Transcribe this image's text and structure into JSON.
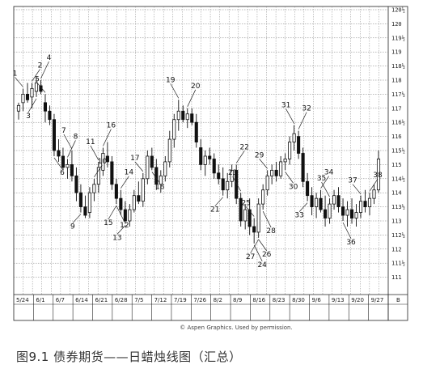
{
  "caption": "图9.1 债券期货——日蜡烛线图（汇总）",
  "credit": "© Aspen Graphics. Used by permission.",
  "chart_data": {
    "type": "candlestick",
    "title": "",
    "xlabel": "",
    "ylabel": "",
    "ylim": [
      110.5,
      120.5
    ],
    "y_ticks": [
      "111",
      "111½",
      "112",
      "112½",
      "113",
      "113½",
      "114",
      "114½",
      "115",
      "115½",
      "116",
      "116½",
      "117",
      "117½",
      "118",
      "118½",
      "119",
      "119½",
      "120",
      "120½"
    ],
    "x_ticks": [
      "5/24",
      "6/1",
      "6/7",
      "6/14",
      "6/21",
      "6/28",
      "7/5",
      "7/12",
      "7/19",
      "7/26",
      "8/2",
      "8/9",
      "8/16",
      "8/23",
      "8/30",
      "9/6",
      "9/13",
      "9/20",
      "9/27",
      "B"
    ],
    "grid": true,
    "candles": [
      {
        "o": 116.9,
        "h": 117.2,
        "l": 116.6,
        "c": 117.1
      },
      {
        "o": 117.2,
        "h": 117.7,
        "l": 116.9,
        "c": 117.5
      },
      {
        "o": 117.5,
        "h": 117.9,
        "l": 117.2,
        "c": 117.3
      },
      {
        "o": 117.4,
        "h": 117.9,
        "l": 117.0,
        "c": 117.7
      },
      {
        "o": 117.6,
        "h": 118.1,
        "l": 117.4,
        "c": 117.9
      },
      {
        "o": 117.8,
        "h": 118.0,
        "l": 117.5,
        "c": 117.6
      },
      {
        "o": 117.2,
        "h": 117.5,
        "l": 116.5,
        "c": 116.9
      },
      {
        "o": 116.9,
        "h": 117.1,
        "l": 116.4,
        "c": 116.6
      },
      {
        "o": 116.6,
        "h": 116.8,
        "l": 115.3,
        "c": 115.5
      },
      {
        "o": 115.5,
        "h": 115.9,
        "l": 115.1,
        "c": 115.3
      },
      {
        "o": 115.3,
        "h": 115.6,
        "l": 114.8,
        "c": 114.9
      },
      {
        "o": 114.9,
        "h": 115.2,
        "l": 114.5,
        "c": 115.0
      },
      {
        "o": 115.0,
        "h": 115.5,
        "l": 114.4,
        "c": 114.6
      },
      {
        "o": 114.6,
        "h": 114.9,
        "l": 113.7,
        "c": 114.0
      },
      {
        "o": 114.0,
        "h": 114.3,
        "l": 113.3,
        "c": 113.5
      },
      {
        "o": 113.5,
        "h": 113.9,
        "l": 113.1,
        "c": 113.2
      },
      {
        "o": 113.3,
        "h": 114.2,
        "l": 113.1,
        "c": 114.0
      },
      {
        "o": 114.0,
        "h": 114.5,
        "l": 113.7,
        "c": 114.3
      },
      {
        "o": 114.3,
        "h": 115.1,
        "l": 114.0,
        "c": 114.9
      },
      {
        "o": 114.8,
        "h": 115.6,
        "l": 114.6,
        "c": 115.4
      },
      {
        "o": 115.3,
        "h": 115.8,
        "l": 114.9,
        "c": 115.1
      },
      {
        "o": 115.1,
        "h": 115.3,
        "l": 114.1,
        "c": 114.3
      },
      {
        "o": 114.3,
        "h": 114.5,
        "l": 113.6,
        "c": 113.8
      },
      {
        "o": 113.8,
        "h": 114.1,
        "l": 113.2,
        "c": 113.4
      },
      {
        "o": 113.4,
        "h": 113.7,
        "l": 112.9,
        "c": 113.0
      },
      {
        "o": 113.0,
        "h": 113.6,
        "l": 112.8,
        "c": 113.4
      },
      {
        "o": 113.4,
        "h": 114.1,
        "l": 113.3,
        "c": 113.9
      },
      {
        "o": 113.9,
        "h": 114.4,
        "l": 113.6,
        "c": 113.7
      },
      {
        "o": 113.7,
        "h": 114.7,
        "l": 113.5,
        "c": 114.5
      },
      {
        "o": 114.5,
        "h": 115.5,
        "l": 114.3,
        "c": 115.3
      },
      {
        "o": 115.3,
        "h": 115.6,
        "l": 114.8,
        "c": 114.9
      },
      {
        "o": 114.9,
        "h": 115.2,
        "l": 114.1,
        "c": 114.3
      },
      {
        "o": 114.3,
        "h": 114.8,
        "l": 114.0,
        "c": 114.6
      },
      {
        "o": 114.6,
        "h": 115.3,
        "l": 114.4,
        "c": 115.1
      },
      {
        "o": 115.1,
        "h": 116.2,
        "l": 114.9,
        "c": 115.9
      },
      {
        "o": 115.9,
        "h": 116.8,
        "l": 115.6,
        "c": 116.6
      },
      {
        "o": 116.6,
        "h": 117.3,
        "l": 116.2,
        "c": 116.9
      },
      {
        "o": 116.9,
        "h": 117.1,
        "l": 116.5,
        "c": 116.6
      },
      {
        "o": 116.6,
        "h": 117.0,
        "l": 116.3,
        "c": 116.8
      },
      {
        "o": 116.8,
        "h": 117.0,
        "l": 116.4,
        "c": 116.5
      },
      {
        "o": 116.5,
        "h": 116.8,
        "l": 115.6,
        "c": 115.8
      },
      {
        "o": 115.6,
        "h": 115.9,
        "l": 114.8,
        "c": 115.0
      },
      {
        "o": 115.0,
        "h": 115.5,
        "l": 114.6,
        "c": 115.3
      },
      {
        "o": 115.3,
        "h": 115.6,
        "l": 115.0,
        "c": 115.2
      },
      {
        "o": 115.2,
        "h": 115.4,
        "l": 114.5,
        "c": 114.7
      },
      {
        "o": 114.7,
        "h": 115.0,
        "l": 114.3,
        "c": 114.5
      },
      {
        "o": 114.5,
        "h": 114.9,
        "l": 113.9,
        "c": 114.1
      },
      {
        "o": 114.1,
        "h": 114.7,
        "l": 113.8,
        "c": 114.4
      },
      {
        "o": 114.4,
        "h": 115.0,
        "l": 114.2,
        "c": 114.8
      },
      {
        "o": 114.8,
        "h": 115.0,
        "l": 113.6,
        "c": 113.8
      },
      {
        "o": 113.8,
        "h": 114.0,
        "l": 112.8,
        "c": 113.0
      },
      {
        "o": 113.0,
        "h": 113.6,
        "l": 112.7,
        "c": 113.4
      },
      {
        "o": 113.4,
        "h": 113.8,
        "l": 112.5,
        "c": 112.8
      },
      {
        "o": 112.8,
        "h": 113.1,
        "l": 112.2,
        "c": 112.6
      },
      {
        "o": 112.6,
        "h": 113.8,
        "l": 112.4,
        "c": 113.6
      },
      {
        "o": 113.6,
        "h": 114.3,
        "l": 113.4,
        "c": 114.1
      },
      {
        "o": 114.1,
        "h": 114.8,
        "l": 113.9,
        "c": 114.6
      },
      {
        "o": 114.6,
        "h": 115.0,
        "l": 114.3,
        "c": 114.8
      },
      {
        "o": 114.8,
        "h": 115.1,
        "l": 114.4,
        "c": 114.6
      },
      {
        "o": 114.6,
        "h": 115.3,
        "l": 114.5,
        "c": 115.1
      },
      {
        "o": 115.1,
        "h": 115.4,
        "l": 114.8,
        "c": 115.2
      },
      {
        "o": 115.2,
        "h": 116.0,
        "l": 115.0,
        "c": 115.8
      },
      {
        "o": 115.8,
        "h": 116.4,
        "l": 115.5,
        "c": 116.1
      },
      {
        "o": 116.0,
        "h": 116.2,
        "l": 115.2,
        "c": 115.4
      },
      {
        "o": 115.4,
        "h": 115.6,
        "l": 114.2,
        "c": 114.4
      },
      {
        "o": 114.4,
        "h": 114.7,
        "l": 113.7,
        "c": 113.9
      },
      {
        "o": 113.9,
        "h": 114.2,
        "l": 113.2,
        "c": 113.5
      },
      {
        "o": 113.5,
        "h": 114.0,
        "l": 113.1,
        "c": 113.8
      },
      {
        "o": 113.8,
        "h": 114.1,
        "l": 113.3,
        "c": 113.4
      },
      {
        "o": 113.4,
        "h": 113.9,
        "l": 112.8,
        "c": 113.1
      },
      {
        "o": 113.1,
        "h": 113.8,
        "l": 112.9,
        "c": 113.6
      },
      {
        "o": 113.6,
        "h": 114.1,
        "l": 113.4,
        "c": 113.9
      },
      {
        "o": 113.9,
        "h": 114.2,
        "l": 113.3,
        "c": 113.5
      },
      {
        "o": 113.5,
        "h": 113.8,
        "l": 113.0,
        "c": 113.2
      },
      {
        "o": 113.2,
        "h": 113.7,
        "l": 112.8,
        "c": 113.4
      },
      {
        "o": 113.4,
        "h": 113.8,
        "l": 112.9,
        "c": 113.1
      },
      {
        "o": 113.1,
        "h": 113.6,
        "l": 112.8,
        "c": 113.3
      },
      {
        "o": 113.3,
        "h": 113.9,
        "l": 113.1,
        "c": 113.7
      },
      {
        "o": 113.7,
        "h": 114.1,
        "l": 113.3,
        "c": 113.5
      },
      {
        "o": 113.5,
        "h": 114.0,
        "l": 113.2,
        "c": 113.8
      },
      {
        "o": 113.8,
        "h": 114.3,
        "l": 113.6,
        "c": 114.1
      },
      {
        "o": 114.1,
        "h": 115.5,
        "l": 114.0,
        "c": 115.2
      }
    ],
    "annotations": [
      "1",
      "2",
      "3",
      "4",
      "5",
      "6",
      "7",
      "8",
      "9",
      "10",
      "11",
      "12",
      "13",
      "14",
      "15",
      "16",
      "17",
      "18",
      "19",
      "20",
      "21",
      "22",
      "23",
      "24",
      "25",
      "26",
      "27",
      "28",
      "29",
      "30",
      "31",
      "32",
      "33",
      "34",
      "35",
      "36",
      "37",
      "38"
    ]
  }
}
